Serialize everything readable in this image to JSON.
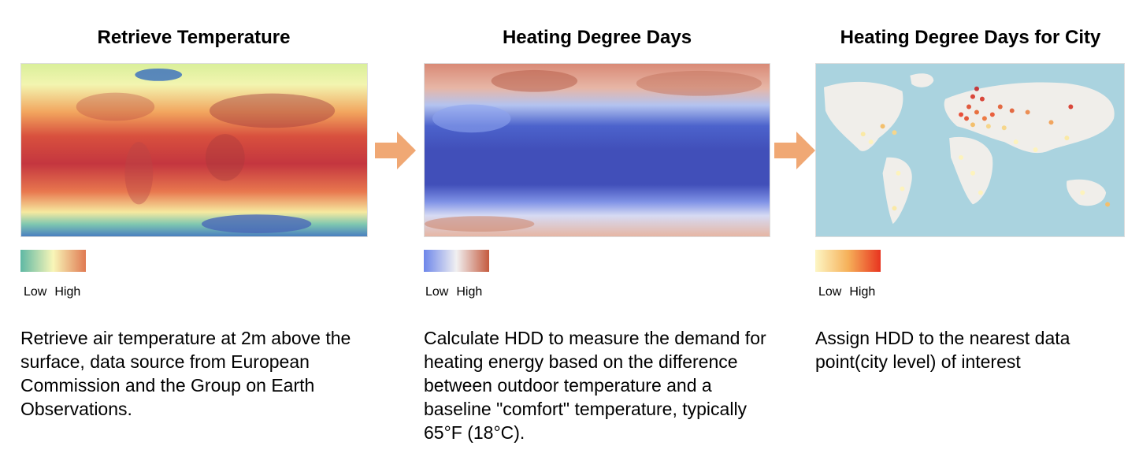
{
  "panels": [
    {
      "title": "Retrieve Temperature",
      "legend": {
        "low": "Low",
        "high": "High",
        "colors": [
          "#5fb8a4",
          "#f8f6b8",
          "#e07a52"
        ]
      },
      "description": "Retrieve air temperature at 2m above the surface, data source from European Commission and the Group on Earth Observations."
    },
    {
      "title": "Heating Degree Days",
      "legend": {
        "low": "Low",
        "high": "High",
        "colors": [
          "#6d86ea",
          "#f1f0f1",
          "#c45a3e"
        ]
      },
      "description": "Calculate HDD to measure the demand for heating energy based on the difference between outdoor temperature and a baseline \"comfort\" temperature, typically 65°F (18°C)."
    },
    {
      "title": "Heating Degree Days for City",
      "legend": {
        "low": "Low",
        "high": "High",
        "colors": [
          "#fdf6c4",
          "#f6b15a",
          "#e8341f"
        ]
      },
      "description": "Assign HDD to the nearest data point(city level) of interest"
    }
  ],
  "arrow_color": "#f0a874"
}
